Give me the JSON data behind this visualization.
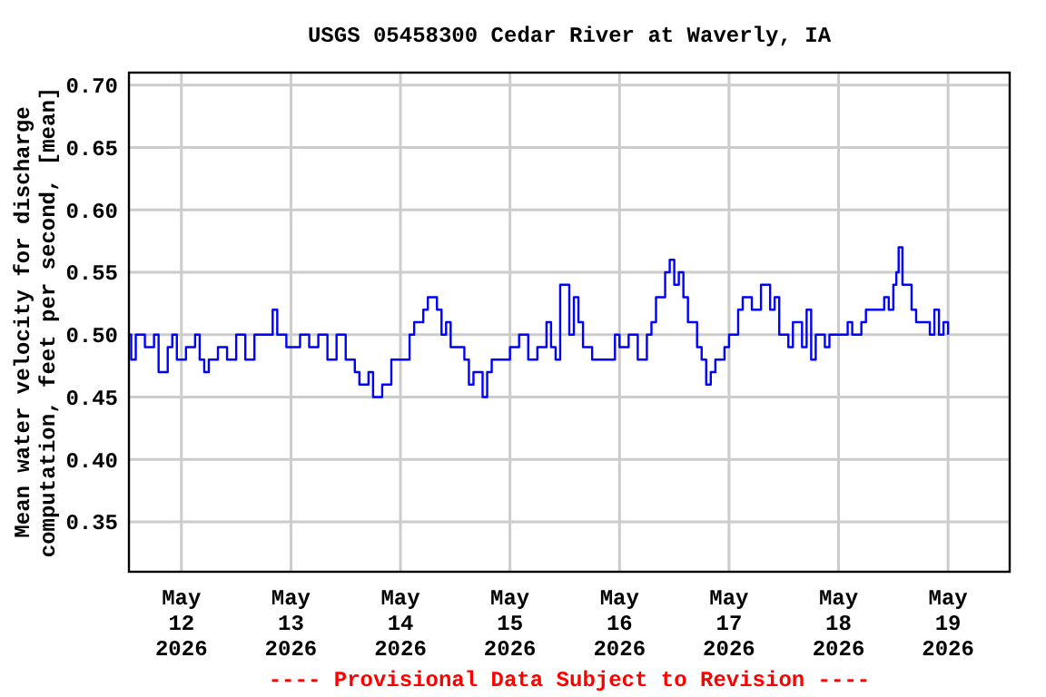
{
  "chart_data": {
    "type": "step",
    "title": "USGS 05458300 Cedar River at Waverly, IA",
    "ylabel": "Mean water velocity for discharge\ncomputation, feet per second, [mean]",
    "annotations": [
      "---- Provisional Data Subject to Revision ----"
    ],
    "xlim": [
      "2026-05-11T12:30",
      "2026-05-19T13:30"
    ],
    "xticks": [
      {
        "value": "2026-05-12",
        "label": "May\n12\n2026"
      },
      {
        "value": "2026-05-13",
        "label": "May\n13\n2026"
      },
      {
        "value": "2026-05-14",
        "label": "May\n14\n2026"
      },
      {
        "value": "2026-05-15",
        "label": "May\n15\n2026"
      },
      {
        "value": "2026-05-16",
        "label": "May\n16\n2026"
      },
      {
        "value": "2026-05-17",
        "label": "May\n17\n2026"
      },
      {
        "value": "2026-05-18",
        "label": "May\n18\n2026"
      },
      {
        "value": "2026-05-19",
        "label": "May\n19\n2026"
      }
    ],
    "ylim": [
      0.31,
      0.71
    ],
    "yticks": [
      {
        "value": 0.35,
        "label": "0.35"
      },
      {
        "value": 0.4,
        "label": "0.40"
      },
      {
        "value": 0.45,
        "label": "0.45"
      },
      {
        "value": 0.5,
        "label": "0.50"
      },
      {
        "value": 0.55,
        "label": "0.55"
      },
      {
        "value": 0.6,
        "label": "0.60"
      },
      {
        "value": 0.65,
        "label": "0.65"
      },
      {
        "value": 0.7,
        "label": "0.70"
      }
    ],
    "grid": true,
    "line_style": "solid",
    "x": [
      "2026-05-11T12:30",
      "2026-05-11T13:00",
      "2026-05-11T14:00",
      "2026-05-11T16:00",
      "2026-05-11T18:00",
      "2026-05-11T19:00",
      "2026-05-11T21:00",
      "2026-05-11T22:00",
      "2026-05-11T23:00",
      "2026-05-12T01:00",
      "2026-05-12T03:00",
      "2026-05-12T04:00",
      "2026-05-12T05:00",
      "2026-05-12T06:00",
      "2026-05-12T07:00",
      "2026-05-12T08:00",
      "2026-05-12T10:00",
      "2026-05-12T12:00",
      "2026-05-12T14:00",
      "2026-05-12T16:00",
      "2026-05-12T18:00",
      "2026-05-12T20:00",
      "2026-05-12T21:00",
      "2026-05-12T23:00",
      "2026-05-13T02:00",
      "2026-05-13T04:00",
      "2026-05-13T06:00",
      "2026-05-13T08:00",
      "2026-05-13T10:00",
      "2026-05-13T12:00",
      "2026-05-13T14:00",
      "2026-05-13T15:00",
      "2026-05-13T17:00",
      "2026-05-13T18:00",
      "2026-05-13T20:00",
      "2026-05-13T22:00",
      "2026-05-14T00:00",
      "2026-05-14T02:00",
      "2026-05-14T03:00",
      "2026-05-14T05:00",
      "2026-05-14T06:00",
      "2026-05-14T08:00",
      "2026-05-14T09:00",
      "2026-05-14T10:00",
      "2026-05-14T11:00",
      "2026-05-14T13:00",
      "2026-05-14T14:00",
      "2026-05-14T15:00",
      "2026-05-14T16:00",
      "2026-05-14T18:00",
      "2026-05-14T19:00",
      "2026-05-14T20:00",
      "2026-05-14T23:00",
      "2026-05-15T00:00",
      "2026-05-15T02:00",
      "2026-05-15T04:00",
      "2026-05-15T06:00",
      "2026-05-15T08:00",
      "2026-05-15T09:00",
      "2026-05-15T10:00",
      "2026-05-15T11:00",
      "2026-05-15T12:00",
      "2026-05-15T13:00",
      "2026-05-15T14:00",
      "2026-05-15T15:00",
      "2026-05-15T16:00",
      "2026-05-15T18:00",
      "2026-05-15T20:00",
      "2026-05-15T22:00",
      "2026-05-15T23:00",
      "2026-05-16T00:00",
      "2026-05-16T02:00",
      "2026-05-16T04:00",
      "2026-05-16T06:00",
      "2026-05-16T07:00",
      "2026-05-16T08:00",
      "2026-05-16T10:00",
      "2026-05-16T11:00",
      "2026-05-16T12:00",
      "2026-05-16T13:00",
      "2026-05-16T14:00",
      "2026-05-16T15:00",
      "2026-05-16T17:00",
      "2026-05-16T18:00",
      "2026-05-16T19:00",
      "2026-05-16T20:00",
      "2026-05-16T21:00",
      "2026-05-16T23:00",
      "2026-05-17T00:00",
      "2026-05-17T02:00",
      "2026-05-17T03:00",
      "2026-05-17T05:00",
      "2026-05-17T07:00",
      "2026-05-17T08:00",
      "2026-05-17T09:00",
      "2026-05-17T10:00",
      "2026-05-17T11:00",
      "2026-05-17T13:00",
      "2026-05-17T14:00",
      "2026-05-17T15:00",
      "2026-05-17T16:00",
      "2026-05-17T17:00",
      "2026-05-17T18:00",
      "2026-05-17T19:00",
      "2026-05-17T21:00",
      "2026-05-17T22:00",
      "2026-05-18T00:00",
      "2026-05-18T02:00",
      "2026-05-18T03:00",
      "2026-05-18T05:00",
      "2026-05-18T06:00",
      "2026-05-18T09:00",
      "2026-05-18T10:00",
      "2026-05-18T11:00",
      "2026-05-18T12:00",
      "2026-05-18T12:40",
      "2026-05-18T13:10",
      "2026-05-18T14:00",
      "2026-05-18T15:00",
      "2026-05-18T16:00",
      "2026-05-18T17:00",
      "2026-05-18T19:00",
      "2026-05-18T20:00",
      "2026-05-18T21:00",
      "2026-05-18T22:00",
      "2026-05-18T23:00",
      "2026-05-19T00:00"
    ],
    "series": [
      {
        "color": "#0000ff",
        "values": [
          0.5,
          0.48,
          0.5,
          0.49,
          0.5,
          0.47,
          0.49,
          0.5,
          0.48,
          0.49,
          0.5,
          0.48,
          0.47,
          0.48,
          0.48,
          0.49,
          0.48,
          0.5,
          0.48,
          0.5,
          0.5,
          0.52,
          0.5,
          0.49,
          0.5,
          0.49,
          0.5,
          0.48,
          0.5,
          0.48,
          0.47,
          0.46,
          0.47,
          0.45,
          0.46,
          0.48,
          0.48,
          0.5,
          0.51,
          0.52,
          0.53,
          0.52,
          0.5,
          0.51,
          0.49,
          0.49,
          0.48,
          0.46,
          0.47,
          0.45,
          0.47,
          0.48,
          0.48,
          0.49,
          0.5,
          0.48,
          0.49,
          0.51,
          0.49,
          0.48,
          0.54,
          0.54,
          0.5,
          0.53,
          0.51,
          0.49,
          0.48,
          0.48,
          0.48,
          0.5,
          0.49,
          0.5,
          0.48,
          0.5,
          0.51,
          0.53,
          0.55,
          0.56,
          0.54,
          0.55,
          0.53,
          0.51,
          0.49,
          0.48,
          0.46,
          0.47,
          0.48,
          0.49,
          0.5,
          0.52,
          0.53,
          0.52,
          0.54,
          0.54,
          0.52,
          0.53,
          0.5,
          0.49,
          0.51,
          0.51,
          0.49,
          0.52,
          0.48,
          0.5,
          0.49,
          0.5,
          0.5,
          0.51,
          0.5,
          0.51,
          0.52,
          0.52,
          0.53,
          0.52,
          0.54,
          0.55,
          0.57,
          0.54,
          0.54,
          0.52,
          0.51,
          0.51,
          0.5,
          0.52,
          0.5,
          0.51,
          0.5
        ]
      }
    ]
  }
}
